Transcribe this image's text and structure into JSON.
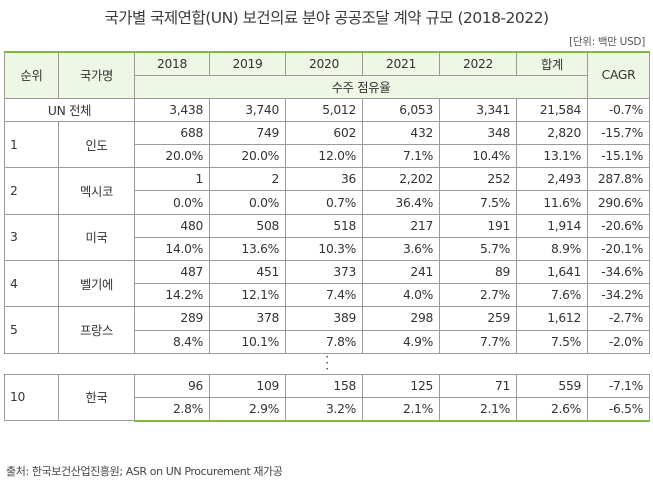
{
  "title": "국가별 국제연합(UN) 보건의료 분야 공공조달 계약 규모 (2018-2022)",
  "unit": "[단위: 백만 USD]",
  "header": {
    "rank": "순위",
    "country": "국가명",
    "years": [
      "2018",
      "2019",
      "2020",
      "2021",
      "2022"
    ],
    "total": "합계",
    "cagr": "CAGR",
    "share_label": "수주 점유율"
  },
  "total_row": {
    "label": "UN 전체",
    "values": [
      "3,438",
      "3,740",
      "5,012",
      "6,053",
      "3,341"
    ],
    "sum": "21,584",
    "cagr": "-0.7%"
  },
  "rows": [
    {
      "rank": "1",
      "country": "인도",
      "values": [
        "688",
        "749",
        "602",
        "432",
        "348"
      ],
      "sum": "2,820",
      "cagr": "-15.7%",
      "shares": [
        "20.0%",
        "20.0%",
        "12.0%",
        "7.1%",
        "10.4%"
      ],
      "share_sum": "13.1%",
      "share_cagr": "-15.1%"
    },
    {
      "rank": "2",
      "country": "멕시코",
      "values": [
        "1",
        "2",
        "36",
        "2,202",
        "252"
      ],
      "sum": "2,493",
      "cagr": "287.8%",
      "shares": [
        "0.0%",
        "0.0%",
        "0.7%",
        "36.4%",
        "7.5%"
      ],
      "share_sum": "11.6%",
      "share_cagr": "290.6%"
    },
    {
      "rank": "3",
      "country": "미국",
      "values": [
        "480",
        "508",
        "518",
        "217",
        "191"
      ],
      "sum": "1,914",
      "cagr": "-20.6%",
      "shares": [
        "14.0%",
        "13.6%",
        "10.3%",
        "3.6%",
        "5.7%"
      ],
      "share_sum": "8.9%",
      "share_cagr": "-20.1%"
    },
    {
      "rank": "4",
      "country": "벨기에",
      "values": [
        "487",
        "451",
        "373",
        "241",
        "89"
      ],
      "sum": "1,641",
      "cagr": "-34.6%",
      "shares": [
        "14.2%",
        "12.1%",
        "7.4%",
        "4.0%",
        "2.7%"
      ],
      "share_sum": "7.6%",
      "share_cagr": "-34.2%"
    },
    {
      "rank": "5",
      "country": "프랑스",
      "values": [
        "289",
        "378",
        "389",
        "298",
        "259"
      ],
      "sum": "1,612",
      "cagr": "-2.7%",
      "shares": [
        "8.4%",
        "10.1%",
        "7.8%",
        "4.9%",
        "7.7%"
      ],
      "share_sum": "7.5%",
      "share_cagr": "-2.0%"
    }
  ],
  "korea_row": {
    "rank": "10",
    "country": "한국",
    "values": [
      "96",
      "109",
      "158",
      "125",
      "71"
    ],
    "sum": "559",
    "cagr": "-7.1%",
    "shares": [
      "2.8%",
      "2.9%",
      "3.2%",
      "2.1%",
      "2.1%"
    ],
    "share_sum": "2.6%",
    "share_cagr": "-6.5%"
  },
  "footer": "출처: 한국보건산업진흥원; ASR on UN Procurement 재가공",
  "colors": {
    "accent": "#80b841",
    "header_bg": "#eef6e6",
    "grid": "#9b9b9b"
  }
}
